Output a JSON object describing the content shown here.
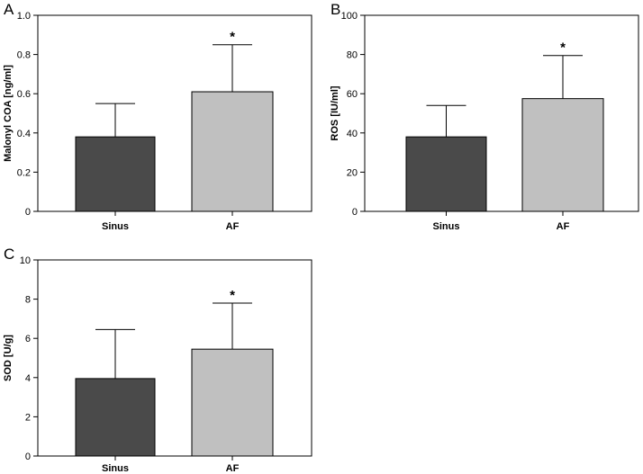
{
  "colors": {
    "sinus": "#4a4a4a",
    "af": "#c0c0c0",
    "axis": "#000000"
  },
  "chart_data": [
    {
      "panel": "A",
      "type": "bar",
      "categories": [
        "Sinus",
        "AF"
      ],
      "values": [
        0.38,
        0.61
      ],
      "errors": [
        0.17,
        0.24
      ],
      "significance": [
        "",
        "*"
      ],
      "ylabel": "Malonyl COA [ng/ml]",
      "ylim": [
        0,
        1.0
      ],
      "yticks": [
        "0",
        "0.2",
        "0.4",
        "0.6",
        "0.8",
        "1.0"
      ]
    },
    {
      "panel": "B",
      "type": "bar",
      "categories": [
        "Sinus",
        "AF"
      ],
      "values": [
        38,
        57.5
      ],
      "errors": [
        16,
        22
      ],
      "significance": [
        "",
        "*"
      ],
      "ylabel": "ROS [IU/ml]",
      "ylim": [
        0,
        100
      ],
      "yticks": [
        "0",
        "20",
        "40",
        "60",
        "80",
        "100"
      ]
    },
    {
      "panel": "C",
      "type": "bar",
      "categories": [
        "Sinus",
        "AF"
      ],
      "values": [
        3.95,
        5.45
      ],
      "errors": [
        2.5,
        2.35
      ],
      "significance": [
        "",
        "*"
      ],
      "ylabel": "SOD [U/g]",
      "ylim": [
        0,
        10
      ],
      "yticks": [
        "0",
        "2",
        "4",
        "6",
        "8",
        "10"
      ]
    }
  ]
}
